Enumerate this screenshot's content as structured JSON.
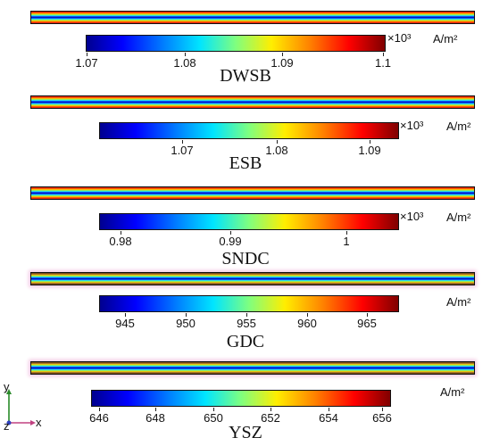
{
  "unit": "A/m²",
  "panels": [
    {
      "label": "DWSB",
      "multiplier": "×10³",
      "ticks": [
        "1.07",
        "1.08",
        "1.09",
        "1.1"
      ]
    },
    {
      "label": "ESB",
      "multiplier": "×10³",
      "ticks": [
        "1.07",
        "1.08",
        "1.09"
      ]
    },
    {
      "label": "SNDC",
      "multiplier": "×10³",
      "ticks": [
        "0.98",
        "0.99",
        "1"
      ]
    },
    {
      "label": "GDC",
      "multiplier": "",
      "ticks": [
        "945",
        "950",
        "955",
        "960",
        "965"
      ]
    },
    {
      "label": "YSZ",
      "multiplier": "",
      "ticks": [
        "646",
        "648",
        "650",
        "652",
        "654",
        "656"
      ]
    }
  ],
  "axes": {
    "y": "y",
    "x": "x",
    "z": "z"
  },
  "colors": {
    "frame": "#111111",
    "glow": "#f4c9e4"
  }
}
